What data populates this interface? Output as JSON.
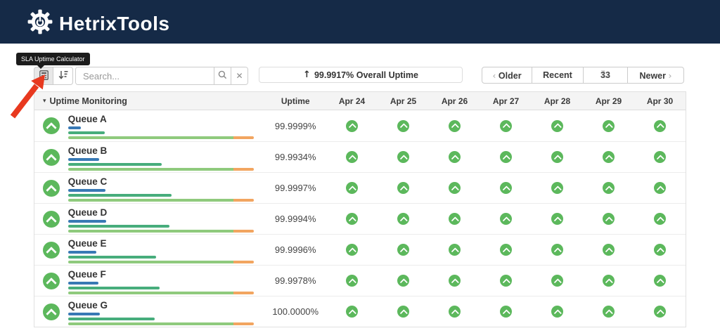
{
  "header": {
    "brand": "HetrixTools"
  },
  "tooltip": {
    "text": "SLA Uptime Calculator"
  },
  "toolbar": {
    "search_placeholder": "Search...",
    "overall_uptime": "99.9917% Overall Uptime"
  },
  "pagination": {
    "older": "Older",
    "recent": "Recent",
    "count": "33",
    "newer": "Newer"
  },
  "icons": {
    "caret_down": "▾",
    "up_arrow": "↑",
    "refresh": "↻",
    "close": "✕",
    "chevron_left": "‹",
    "chevron_right": "›",
    "calculator": "calculator-grid",
    "sort": "sort-amount-desc",
    "search": "magnifier",
    "status_up": "chevron-up-circle"
  },
  "table": {
    "group_header": "Uptime Monitoring",
    "uptime_col": "Uptime",
    "dates": [
      "Apr 24",
      "Apr 25",
      "Apr 26",
      "Apr 27",
      "Apr 28",
      "Apr 29",
      "Apr 30"
    ],
    "rows": [
      {
        "name": "Queue A",
        "uptime": "99.9999%",
        "bars": {
          "blue": 18,
          "green": 52,
          "long_green": 235,
          "long_orange": 29
        },
        "days": [
          "up",
          "up",
          "up",
          "up",
          "up",
          "up",
          "up"
        ]
      },
      {
        "name": "Queue B",
        "uptime": "99.9934%",
        "bars": {
          "blue": 44,
          "green": 133,
          "long_green": 235,
          "long_orange": 29
        },
        "days": [
          "up",
          "up",
          "up",
          "up",
          "up",
          "up",
          "up"
        ]
      },
      {
        "name": "Queue C",
        "uptime": "99.9997%",
        "bars": {
          "blue": 53,
          "green": 147,
          "long_green": 235,
          "long_orange": 29
        },
        "days": [
          "up",
          "up",
          "up",
          "up",
          "up",
          "up",
          "up"
        ]
      },
      {
        "name": "Queue D",
        "uptime": "99.9994%",
        "bars": {
          "blue": 54,
          "green": 144,
          "long_green": 235,
          "long_orange": 29
        },
        "days": [
          "up",
          "up",
          "up",
          "up",
          "up",
          "up",
          "up"
        ]
      },
      {
        "name": "Queue E",
        "uptime": "99.9996%",
        "bars": {
          "blue": 40,
          "green": 125,
          "long_green": 235,
          "long_orange": 29
        },
        "days": [
          "up",
          "up",
          "up",
          "up",
          "up",
          "up",
          "up"
        ]
      },
      {
        "name": "Queue F",
        "uptime": "99.9978%",
        "bars": {
          "blue": 43,
          "green": 130,
          "long_green": 235,
          "long_orange": 29
        },
        "days": [
          "up",
          "up",
          "up",
          "up",
          "up",
          "up",
          "up"
        ]
      },
      {
        "name": "Queue G",
        "uptime": "100.0000%",
        "bars": {
          "blue": 45,
          "green": 123,
          "long_green": 235,
          "long_orange": 29
        },
        "days": [
          "up",
          "up",
          "up",
          "up",
          "up",
          "up",
          "up"
        ]
      }
    ]
  },
  "colors": {
    "header_navy": "#152a47",
    "status_green": "#5cb85c",
    "bar_blue": "#3879b5",
    "bar_green": "#47ad7c",
    "bar_light_green": "#8fca7d",
    "bar_orange": "#f2a560",
    "annotation_red": "#e8391f"
  }
}
